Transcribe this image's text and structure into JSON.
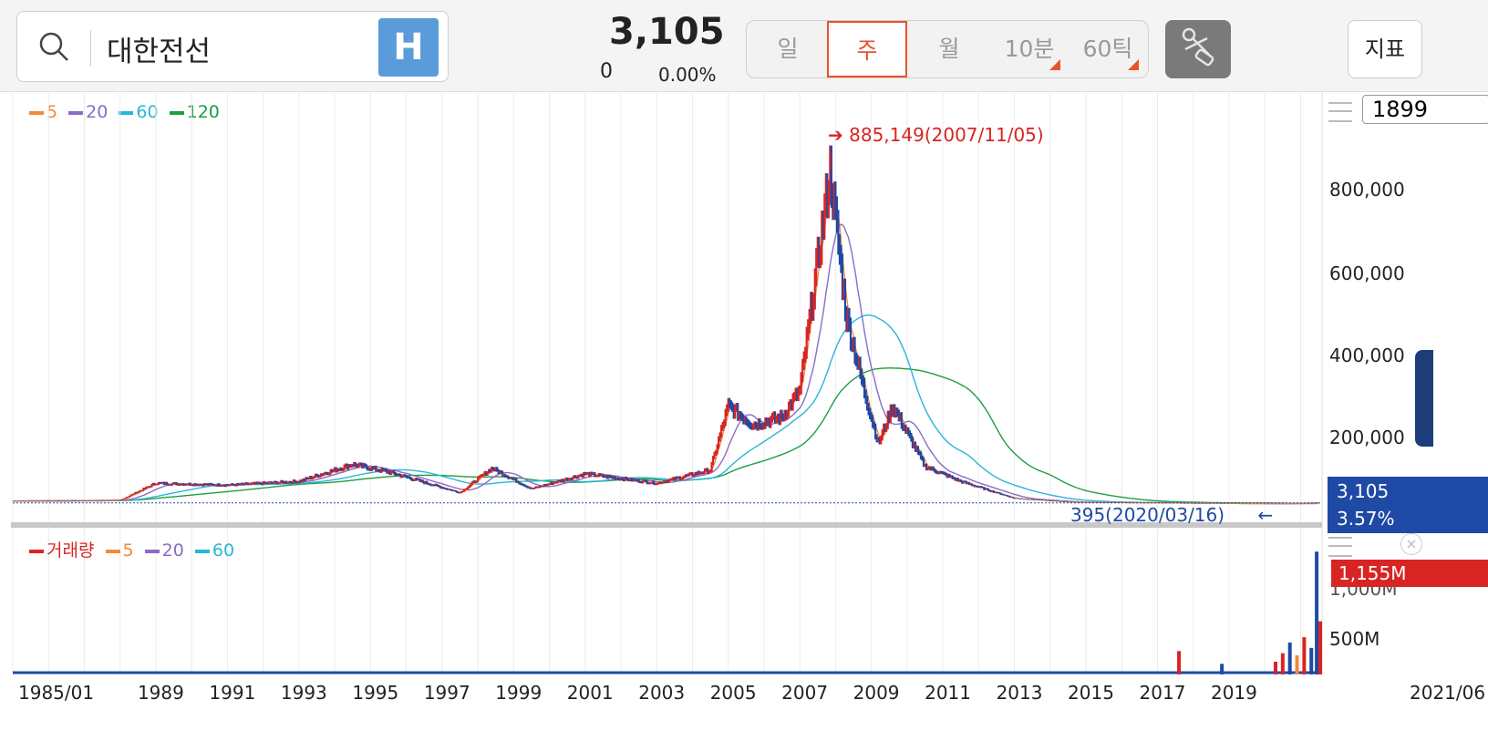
{
  "search": {
    "stock_name": "대한전선",
    "market_badge": "H"
  },
  "quote": {
    "price": "3,105",
    "change": "0",
    "change_pct": "0.00%"
  },
  "period_tabs": [
    {
      "label": "일",
      "active": false
    },
    {
      "label": "주",
      "active": true
    },
    {
      "label": "월",
      "active": false
    },
    {
      "label": "10분",
      "active": false
    },
    {
      "label": "60틱",
      "active": false
    }
  ],
  "indicator_button": "지표",
  "range_count": "1899",
  "price_legend": [
    {
      "label": "5",
      "color": "#f08a3c"
    },
    {
      "label": "20",
      "color": "#8a6cc8"
    },
    {
      "label": "60",
      "color": "#28b6d8"
    },
    {
      "label": "120",
      "color": "#1e9e3e"
    }
  ],
  "volume_legend": [
    {
      "label": "거래량",
      "color": "#d92424"
    },
    {
      "label": "5",
      "color": "#f08a3c"
    },
    {
      "label": "20",
      "color": "#8a6cc8"
    },
    {
      "label": "60",
      "color": "#28b6d8"
    }
  ],
  "annotations": {
    "high": "885,149(2007/11/05)",
    "low": "395(2020/03/16)"
  },
  "price_axis": [
    "800,000",
    "600,000",
    "400,000",
    "200,000"
  ],
  "current_tag": {
    "price": "3,105",
    "pct": "3.57%"
  },
  "volume_axis": [
    "1,000M",
    "500M"
  ],
  "volume_tag": "1,155M",
  "x_axis": [
    "1985/01",
    "1989",
    "1991",
    "1993",
    "1995",
    "1997",
    "1999",
    "2001",
    "2003",
    "2005",
    "2007",
    "2009",
    "2011",
    "2013",
    "2015",
    "2017",
    "2019",
    "2021/06"
  ],
  "colors": {
    "up": "#d92424",
    "down": "#1e49a4",
    "accent": "#e8532b"
  },
  "chart_data": {
    "type": "line",
    "title": "",
    "x": [
      1985.0,
      1988.0,
      1989.0,
      1991.0,
      1993.0,
      1994.5,
      1995.5,
      1997.5,
      1998.4,
      1999.5,
      2001.0,
      2003.0,
      2004.5,
      2005.0,
      2005.7,
      2006.5,
      2007.0,
      2007.85,
      2008.3,
      2008.8,
      2009.2,
      2009.6,
      2010.5,
      2011.5,
      2013.0,
      2014.5,
      2017.0,
      2019.0,
      2020.2,
      2021.5
    ],
    "series": [
      {
        "name": "",
        "values": [
          8000,
          10000,
          55000,
          50000,
          60000,
          105000,
          85000,
          30000,
          95000,
          40000,
          80000,
          55000,
          90000,
          260000,
          210000,
          230000,
          300000,
          885149,
          500000,
          300000,
          160000,
          260000,
          100000,
          60000,
          15000,
          5000,
          3000,
          1500,
          395,
          3105
        ]
      }
    ],
    "ylim": [
      0,
      950000
    ],
    "volume": {
      "max_value": 1155000000,
      "ylim": [
        0,
        1200000000
      ]
    }
  }
}
